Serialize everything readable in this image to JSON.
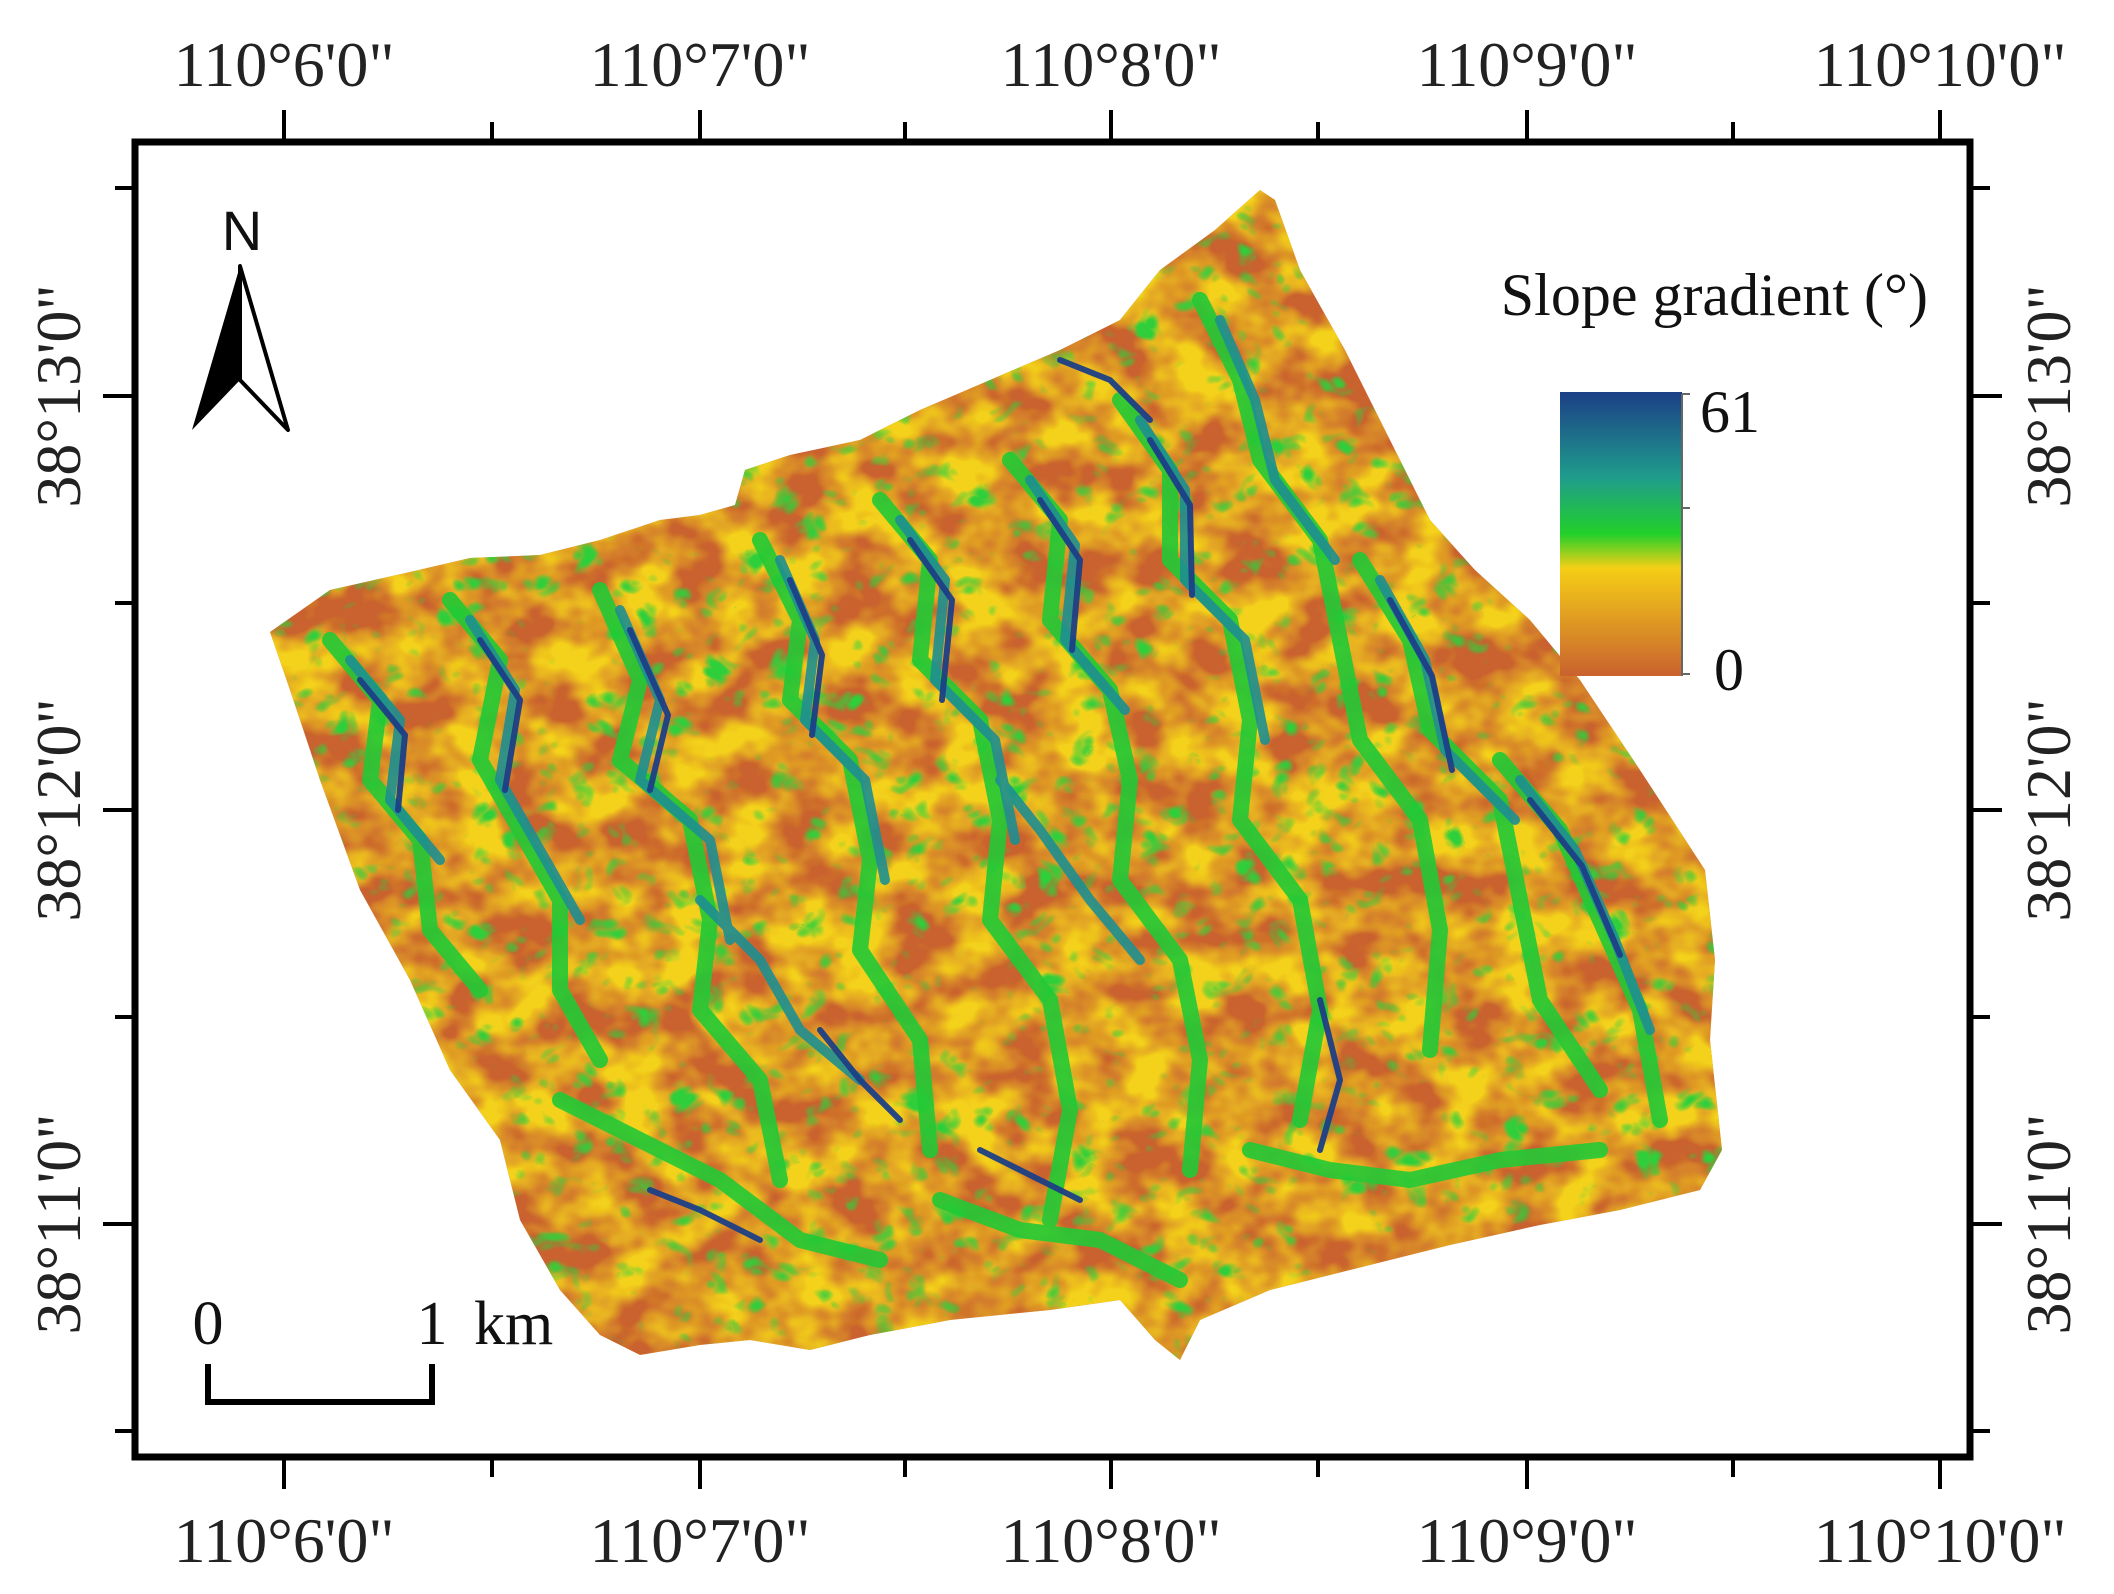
{
  "map": {
    "lon_labels": [
      "110°6'0\"",
      "110°7'0\"",
      "110°8'0\"",
      "110°9'0\"",
      "110°10'0\""
    ],
    "lat_labels": [
      "38°13'0\"",
      "38°12'0\"",
      "38°11'0\""
    ],
    "north_arrow": {
      "label": "N",
      "icon": "north-arrow-icon"
    },
    "legend": {
      "title": "Slope gradient (°)",
      "max_label": "61",
      "min_label": "0",
      "colors": [
        "#1c3f86",
        "#1f9c8c",
        "#22d02a",
        "#f5cf16",
        "#c9622f"
      ]
    },
    "scale_bar": {
      "start_label": "0",
      "end_label": "1",
      "unit": "km"
    },
    "colors": {
      "frame": "#000000",
      "low_slope": "#c9622f",
      "mid_slope": "#f5cf16",
      "green_slope": "#22d02a",
      "steep_slope": "#1c3f86"
    }
  }
}
